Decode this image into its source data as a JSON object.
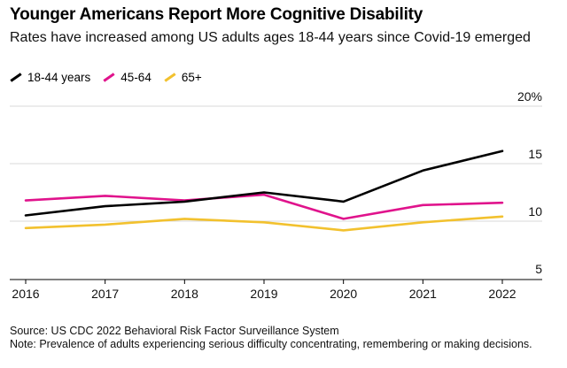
{
  "header": {
    "title": "Younger Americans Report More Cognitive Disability",
    "subtitle": "Rates have increased among US adults ages 18-44 years since Covid-19 emerged"
  },
  "legend": [
    {
      "label": "18-44 years",
      "color": "#000000"
    },
    {
      "label": "45-64",
      "color": "#e0138c"
    },
    {
      "label": "65+",
      "color": "#f2c12e"
    }
  ],
  "footer": {
    "source": "Source: US CDC 2022 Behavioral Risk Factor Surveillance System",
    "note": "Note: Prevalence of adults experiencing serious difficulty concentrating, remembering or making decisions."
  },
  "chart_data": {
    "type": "line",
    "title": "Younger Americans Report More Cognitive Disability",
    "subtitle": "Rates have increased among US adults ages 18-44 years since Covid-19 emerged",
    "x": [
      2016,
      2017,
      2018,
      2019,
      2020,
      2021,
      2022
    ],
    "series": [
      {
        "name": "18-44 years",
        "color": "#000000",
        "values": [
          10.5,
          11.3,
          11.7,
          12.5,
          11.7,
          14.4,
          16.1
        ]
      },
      {
        "name": "45-64",
        "color": "#e0138c",
        "values": [
          11.8,
          12.2,
          11.8,
          12.3,
          10.2,
          11.4,
          11.6
        ]
      },
      {
        "name": "65+",
        "color": "#f2c12e",
        "values": [
          9.4,
          9.7,
          10.2,
          9.9,
          9.2,
          9.9,
          10.4
        ]
      }
    ],
    "ylim": [
      5,
      20
    ],
    "yticks": [
      5,
      10,
      15,
      20
    ],
    "ytick_labels": [
      "5",
      "10",
      "15",
      "20%"
    ],
    "xlabel": "",
    "ylabel": "",
    "grid": true,
    "legend_position": "top-left"
  }
}
